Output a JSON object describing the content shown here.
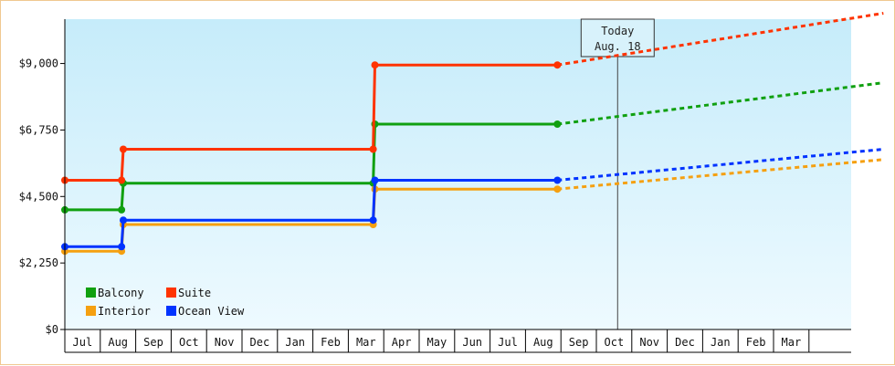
{
  "chart_data": {
    "type": "line",
    "title": "",
    "xlabel": "",
    "ylabel": "",
    "ylim": [
      0,
      10500
    ],
    "y_ticks": [
      "$0",
      "$2,250",
      "$4,500",
      "$6,750",
      "$9,000"
    ],
    "y_tick_values": [
      0,
      2250,
      4500,
      6750,
      9000
    ],
    "x_tick_labels": [
      "Jul",
      "Aug",
      "Sep",
      "Oct",
      "Nov",
      "Dec",
      "Jan",
      "Feb",
      "Mar",
      "Apr",
      "May",
      "Jun",
      "Jul",
      "Aug",
      "Sep",
      "Oct",
      "Nov",
      "Dec",
      "Jan",
      "Feb",
      "Mar"
    ],
    "grid": false,
    "legend_position": "bottom-left",
    "today_marker": {
      "line1": "Today",
      "line2": "Aug. 18",
      "x": 15.6
    },
    "series": [
      {
        "name": "Balcony",
        "color": "#10a010",
        "points": [
          [
            0,
            4050
          ],
          [
            1.6,
            4050
          ],
          [
            1.65,
            4950
          ],
          [
            8.7,
            4950
          ],
          [
            8.75,
            6950
          ],
          [
            13.9,
            6950
          ]
        ],
        "projection": [
          [
            13.9,
            6950
          ],
          [
            23.1,
            8350
          ]
        ]
      },
      {
        "name": "Suite",
        "color": "#ff3300",
        "points": [
          [
            0,
            5050
          ],
          [
            1.6,
            5050
          ],
          [
            1.65,
            6100
          ],
          [
            8.7,
            6100
          ],
          [
            8.75,
            8950
          ],
          [
            13.9,
            8950
          ]
        ],
        "projection": [
          [
            13.9,
            8950
          ],
          [
            23.1,
            10700
          ]
        ]
      },
      {
        "name": "Interior",
        "color": "#f5a010",
        "points": [
          [
            0,
            2650
          ],
          [
            1.6,
            2650
          ],
          [
            1.65,
            3550
          ],
          [
            8.7,
            3550
          ],
          [
            8.75,
            4750
          ],
          [
            13.9,
            4750
          ]
        ],
        "projection": [
          [
            13.9,
            4750
          ],
          [
            23.1,
            5750
          ]
        ]
      },
      {
        "name": "Ocean View",
        "color": "#0033ff",
        "points": [
          [
            0,
            2800
          ],
          [
            1.6,
            2800
          ],
          [
            1.65,
            3700
          ],
          [
            8.7,
            3700
          ],
          [
            8.75,
            5050
          ],
          [
            13.9,
            5050
          ]
        ],
        "projection": [
          [
            13.9,
            5050
          ],
          [
            23.1,
            6100
          ]
        ]
      }
    ],
    "marker_points": {
      "Balcony": [
        [
          0,
          4050
        ],
        [
          1.6,
          4050
        ],
        [
          1.65,
          4950
        ],
        [
          8.7,
          4950
        ],
        [
          8.75,
          6950
        ],
        [
          13.9,
          6950
        ]
      ],
      "Suite": [
        [
          0,
          5050
        ],
        [
          1.6,
          5050
        ],
        [
          1.65,
          6100
        ],
        [
          8.7,
          6100
        ],
        [
          8.75,
          8950
        ],
        [
          13.9,
          8950
        ]
      ],
      "Interior": [
        [
          0,
          2650
        ],
        [
          1.6,
          2650
        ],
        [
          1.65,
          3550
        ],
        [
          8.7,
          3550
        ],
        [
          8.75,
          4750
        ],
        [
          13.9,
          4750
        ]
      ],
      "Ocean View": [
        [
          0,
          2800
        ],
        [
          1.6,
          2800
        ],
        [
          1.65,
          3700
        ],
        [
          8.7,
          3700
        ],
        [
          8.75,
          5050
        ],
        [
          13.9,
          5050
        ]
      ]
    },
    "legend": [
      {
        "label": "Balcony",
        "color": "#10a010"
      },
      {
        "label": "Suite",
        "color": "#ff3300"
      },
      {
        "label": "Interior",
        "color": "#f5a010"
      },
      {
        "label": "Ocean View",
        "color": "#0033ff"
      }
    ]
  }
}
